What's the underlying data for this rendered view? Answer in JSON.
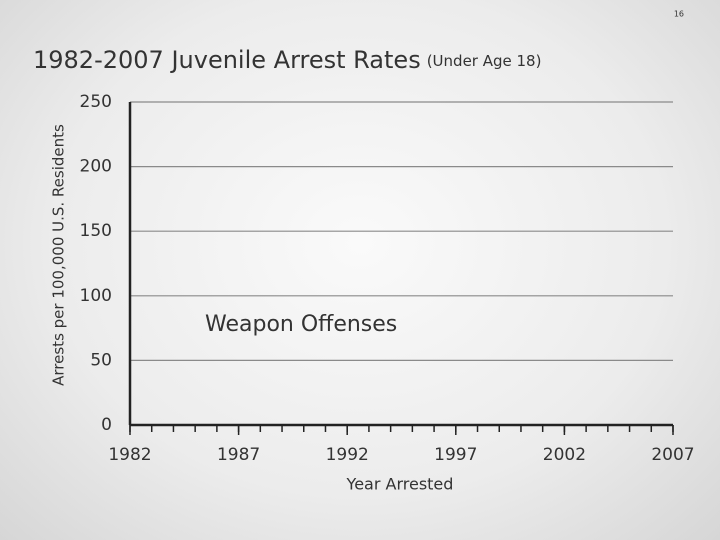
{
  "page_number": "16",
  "chart_data": {
    "type": "line",
    "title": "1982-2007 Juvenile Arrest Rates",
    "subtitle": "(Under Age 18)",
    "x_label": "Year Arrested",
    "y_label": "Arrests per 100,000 U.S. Residents",
    "annotation": "Weapon Offenses",
    "series": [],
    "xlim": [
      1982,
      2007
    ],
    "xticks": [
      1982,
      1987,
      1992,
      1997,
      2002,
      2007
    ],
    "xminorticks": [
      1982,
      1983,
      1984,
      1985,
      1986,
      1987,
      1988,
      1989,
      1990,
      1991,
      1992,
      1993,
      1994,
      1995,
      1996,
      1997,
      1998,
      1999,
      2000,
      2001,
      2002,
      2003,
      2004,
      2005,
      2006,
      2007
    ],
    "ylim": [
      0,
      250
    ],
    "yticks": [
      0,
      50,
      100,
      150,
      200,
      250
    ],
    "grid": true
  }
}
